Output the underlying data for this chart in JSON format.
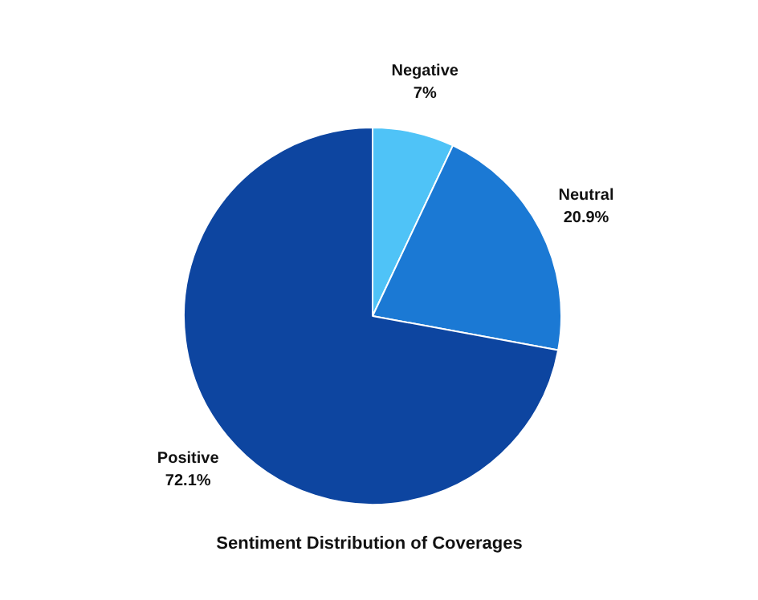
{
  "chart_data": {
    "type": "pie",
    "title": "Sentiment Distribution of Coverages",
    "categories": [
      "Negative",
      "Neutral",
      "Positive"
    ],
    "values": [
      7,
      20.9,
      72.1
    ],
    "colors": [
      "#4fc3f7",
      "#1b79d4",
      "#0d45a0"
    ],
    "value_labels": [
      "7%",
      "20.9%",
      "72.1%"
    ]
  }
}
